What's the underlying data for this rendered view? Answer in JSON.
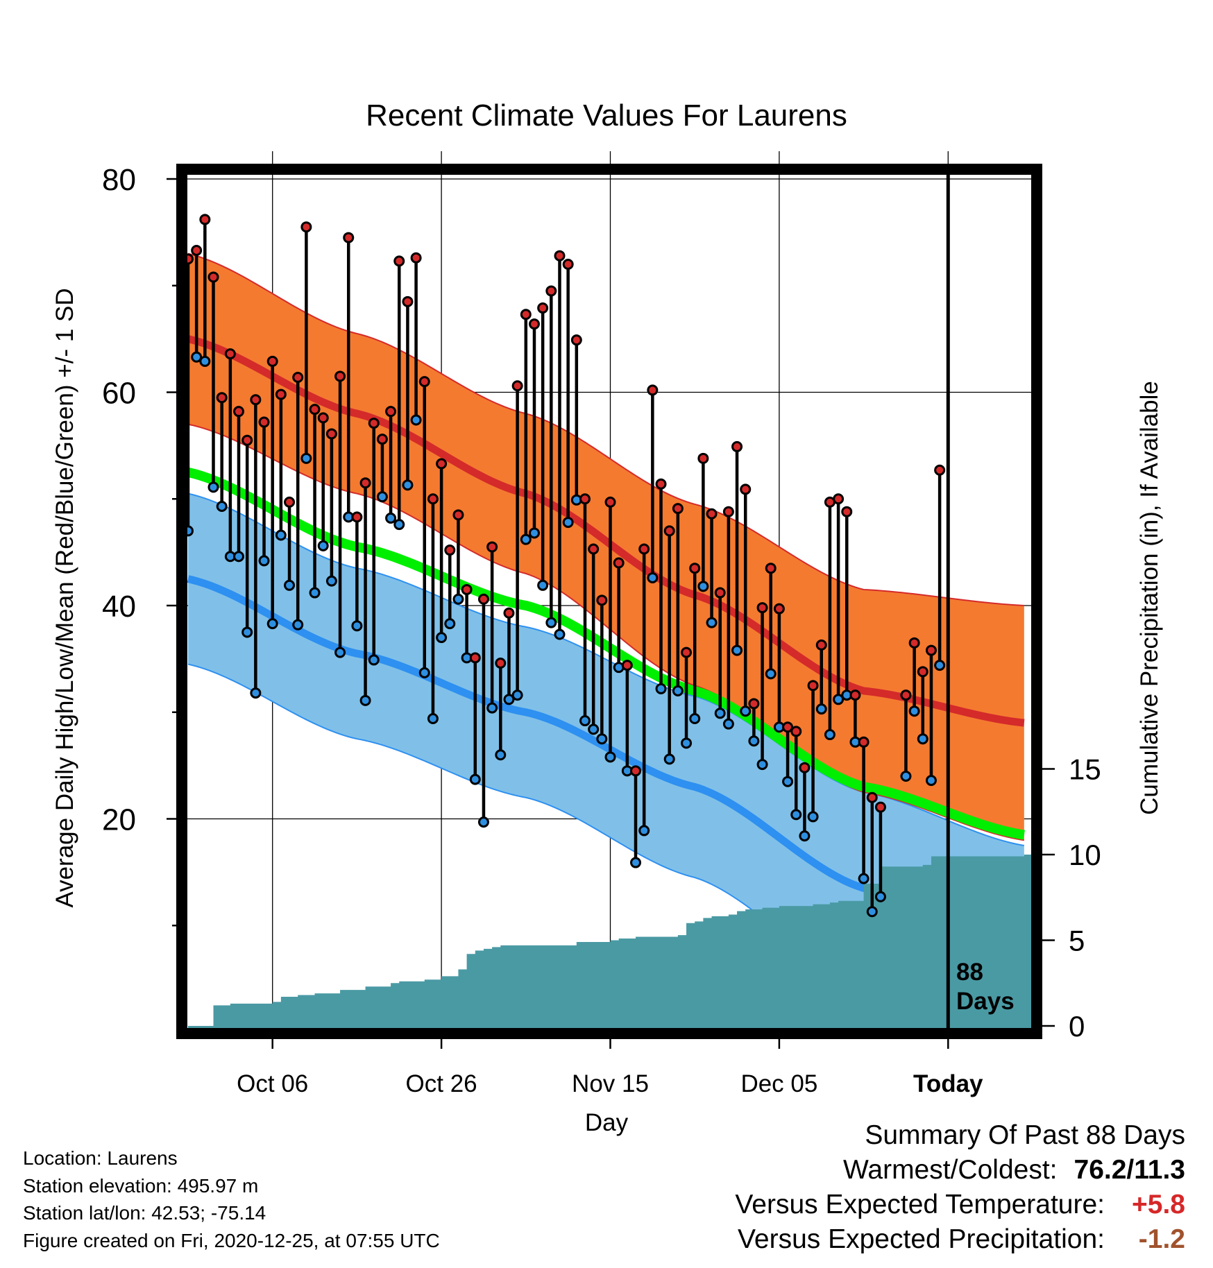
{
  "chart_data": {
    "type": "line",
    "title": "Recent Climate Values For Laurens",
    "xlabel": "Day",
    "ylabel_left": "Average Daily High/Low/Mean (Red/Blue/Green) +/- 1 SD",
    "ylabel_right": "Cumulative Precipitation (in), If Available",
    "x_start": "2020-09-26",
    "days_shown": 100,
    "ylim_left": [
      0,
      80
    ],
    "yticks_left": [
      "20",
      "40",
      "60",
      "80"
    ],
    "ylim_right": [
      0,
      20
    ],
    "yticks_right": [
      "0",
      "5",
      "10",
      "15"
    ],
    "xticks": [
      {
        "date": "2020-10-06",
        "label": "Oct 06"
      },
      {
        "date": "2020-10-26",
        "label": "Oct 26"
      },
      {
        "date": "2020-11-15",
        "label": "Nov 15"
      },
      {
        "date": "2020-12-05",
        "label": "Dec 05"
      },
      {
        "date": "2020-12-25",
        "label": "Today"
      }
    ],
    "today_marker": {
      "date": "2020-12-25",
      "label_line1": "88",
      "label_line2": "Days"
    },
    "grid": true,
    "colors": {
      "high_band": "#f47a30",
      "high_band_edge": "#d42a2a",
      "high_mean": "#d42a2a",
      "low_band": "#80c0e8",
      "low_band_edge": "#2e90f0",
      "low_mean": "#2e90f0",
      "mean_line": "#00ee00",
      "overlap": "#9a1010",
      "precip": "#4a9aa4",
      "high_point": "#d42a2a",
      "low_point": "#2e8fe0"
    },
    "normals": {
      "x": [
        "2020-09-26",
        "2020-10-16",
        "2020-11-05",
        "2020-11-25",
        "2020-12-15",
        "2021-01-03"
      ],
      "high_mean": [
        65,
        58,
        50.5,
        41,
        32,
        29
      ],
      "high_sd": [
        8,
        7.5,
        7.5,
        8.5,
        9.5,
        11
      ],
      "low_mean": [
        42.5,
        35.5,
        30,
        23,
        13.5,
        8
      ],
      "low_sd": [
        8,
        8,
        8,
        8.5,
        9,
        9.5
      ],
      "mean": [
        52.5,
        45.5,
        40,
        32,
        23,
        18.5
      ]
    },
    "daily": [
      {
        "date": "2020-09-26",
        "high": 72.5,
        "low": 47.0
      },
      {
        "date": "2020-09-27",
        "high": 73.3,
        "low": 63.3
      },
      {
        "date": "2020-09-28",
        "high": 76.2,
        "low": 62.9
      },
      {
        "date": "2020-09-29",
        "high": 70.8,
        "low": 51.1
      },
      {
        "date": "2020-09-30",
        "high": 59.5,
        "low": 49.3
      },
      {
        "date": "2020-10-01",
        "high": 63.6,
        "low": 44.6
      },
      {
        "date": "2020-10-02",
        "high": 58.2,
        "low": 44.6
      },
      {
        "date": "2020-10-03",
        "high": 55.5,
        "low": 37.5
      },
      {
        "date": "2020-10-04",
        "high": 59.3,
        "low": 31.8
      },
      {
        "date": "2020-10-05",
        "high": 57.2,
        "low": 44.2
      },
      {
        "date": "2020-10-06",
        "high": 62.9,
        "low": 38.3
      },
      {
        "date": "2020-10-07",
        "high": 59.8,
        "low": 46.6
      },
      {
        "date": "2020-10-08",
        "high": 49.7,
        "low": 41.9
      },
      {
        "date": "2020-10-09",
        "high": 61.4,
        "low": 38.2
      },
      {
        "date": "2020-10-10",
        "high": 75.5,
        "low": 53.8
      },
      {
        "date": "2020-10-11",
        "high": 58.4,
        "low": 41.2
      },
      {
        "date": "2020-10-12",
        "high": 57.6,
        "low": 45.6
      },
      {
        "date": "2020-10-13",
        "high": 56.1,
        "low": 42.3
      },
      {
        "date": "2020-10-14",
        "high": 61.5,
        "low": 35.6
      },
      {
        "date": "2020-10-15",
        "high": 74.5,
        "low": 48.3
      },
      {
        "date": "2020-10-16",
        "high": 48.3,
        "low": 38.1
      },
      {
        "date": "2020-10-17",
        "high": 51.5,
        "low": 31.1
      },
      {
        "date": "2020-10-18",
        "high": 57.1,
        "low": 34.9
      },
      {
        "date": "2020-10-19",
        "high": 55.6,
        "low": 50.2
      },
      {
        "date": "2020-10-20",
        "high": 58.2,
        "low": 48.2
      },
      {
        "date": "2020-10-21",
        "high": 72.3,
        "low": 47.6
      },
      {
        "date": "2020-10-22",
        "high": 68.5,
        "low": 51.3
      },
      {
        "date": "2020-10-23",
        "high": 72.6,
        "low": 57.4
      },
      {
        "date": "2020-10-24",
        "high": 61.0,
        "low": 33.7
      },
      {
        "date": "2020-10-25",
        "high": 50.0,
        "low": 29.4
      },
      {
        "date": "2020-10-26",
        "high": 53.3,
        "low": 37.0
      },
      {
        "date": "2020-10-27",
        "high": 45.2,
        "low": 38.3
      },
      {
        "date": "2020-10-28",
        "high": 48.5,
        "low": 40.6
      },
      {
        "date": "2020-10-29",
        "high": 41.5,
        "low": 35.1
      },
      {
        "date": "2020-10-30",
        "high": 35.1,
        "low": 23.7
      },
      {
        "date": "2020-10-31",
        "high": 40.6,
        "low": 19.7
      },
      {
        "date": "2020-11-01",
        "high": 45.5,
        "low": 30.4
      },
      {
        "date": "2020-11-02",
        "high": 34.6,
        "low": 26.0
      },
      {
        "date": "2020-11-03",
        "high": 39.3,
        "low": 31.2
      },
      {
        "date": "2020-11-04",
        "high": 60.6,
        "low": 31.6
      },
      {
        "date": "2020-11-05",
        "high": 67.3,
        "low": 46.2
      },
      {
        "date": "2020-11-06",
        "high": 66.4,
        "low": 46.8
      },
      {
        "date": "2020-11-07",
        "high": 67.9,
        "low": 41.9
      },
      {
        "date": "2020-11-08",
        "high": 69.5,
        "low": 38.4
      },
      {
        "date": "2020-11-09",
        "high": 72.8,
        "low": 37.3
      },
      {
        "date": "2020-11-10",
        "high": 72.0,
        "low": 47.8
      },
      {
        "date": "2020-11-11",
        "high": 64.9,
        "low": 49.9
      },
      {
        "date": "2020-11-12",
        "high": 50.0,
        "low": 29.2
      },
      {
        "date": "2020-11-13",
        "high": 45.3,
        "low": 28.4
      },
      {
        "date": "2020-11-14",
        "high": 40.5,
        "low": 27.5
      },
      {
        "date": "2020-11-15",
        "high": 49.7,
        "low": 25.8
      },
      {
        "date": "2020-11-16",
        "high": 44.0,
        "low": 34.2
      },
      {
        "date": "2020-11-17",
        "high": 34.4,
        "low": 24.5
      },
      {
        "date": "2020-11-18",
        "high": 24.5,
        "low": 15.9
      },
      {
        "date": "2020-11-19",
        "high": 45.3,
        "low": 18.9
      },
      {
        "date": "2020-11-20",
        "high": 60.2,
        "low": 42.6
      },
      {
        "date": "2020-11-21",
        "high": 51.4,
        "low": 32.2
      },
      {
        "date": "2020-11-22",
        "high": 47.0,
        "low": 25.6
      },
      {
        "date": "2020-11-23",
        "high": 49.1,
        "low": 32.0
      },
      {
        "date": "2020-11-24",
        "high": 35.6,
        "low": 27.1
      },
      {
        "date": "2020-11-25",
        "high": 43.5,
        "low": 29.4
      },
      {
        "date": "2020-11-26",
        "high": 53.8,
        "low": 41.8
      },
      {
        "date": "2020-11-27",
        "high": 48.6,
        "low": 38.4
      },
      {
        "date": "2020-11-28",
        "high": 41.2,
        "low": 29.9
      },
      {
        "date": "2020-11-29",
        "high": 48.8,
        "low": 28.9
      },
      {
        "date": "2020-11-30",
        "high": 54.9,
        "low": 35.8
      },
      {
        "date": "2020-12-01",
        "high": 50.9,
        "low": 30.1
      },
      {
        "date": "2020-12-02",
        "high": 30.8,
        "low": 27.3
      },
      {
        "date": "2020-12-03",
        "high": 39.8,
        "low": 25.1
      },
      {
        "date": "2020-12-04",
        "high": 43.5,
        "low": 33.6
      },
      {
        "date": "2020-12-05",
        "high": 39.7,
        "low": 28.6
      },
      {
        "date": "2020-12-06",
        "high": 28.6,
        "low": 23.5
      },
      {
        "date": "2020-12-07",
        "high": 28.2,
        "low": 20.4
      },
      {
        "date": "2020-12-08",
        "high": 24.8,
        "low": 18.4
      },
      {
        "date": "2020-12-09",
        "high": 32.5,
        "low": 20.2
      },
      {
        "date": "2020-12-10",
        "high": 36.3,
        "low": 30.3
      },
      {
        "date": "2020-12-11",
        "high": 49.7,
        "low": 27.9
      },
      {
        "date": "2020-12-12",
        "high": 50.0,
        "low": 31.2
      },
      {
        "date": "2020-12-13",
        "high": 48.8,
        "low": 31.6
      },
      {
        "date": "2020-12-14",
        "high": 31.6,
        "low": 27.2
      },
      {
        "date": "2020-12-15",
        "high": 27.2,
        "low": 14.4
      },
      {
        "date": "2020-12-16",
        "high": 22.0,
        "low": 11.3
      },
      {
        "date": "2020-12-17",
        "high": 21.1,
        "low": 12.7
      },
      {
        "date": "2020-12-20",
        "high": 31.6,
        "low": 24.0
      },
      {
        "date": "2020-12-21",
        "high": 36.5,
        "low": 30.1
      },
      {
        "date": "2020-12-22",
        "high": 33.8,
        "low": 27.5
      },
      {
        "date": "2020-12-23",
        "high": 35.8,
        "low": 23.6
      },
      {
        "date": "2020-12-24",
        "high": 52.7,
        "low": 34.4
      }
    ],
    "precip_cumulative": {
      "x": [
        "2020-09-26",
        "2020-09-28",
        "2020-09-29",
        "2020-10-01",
        "2020-10-06",
        "2020-10-07",
        "2020-10-09",
        "2020-10-11",
        "2020-10-14",
        "2020-10-17",
        "2020-10-20",
        "2020-10-21",
        "2020-10-24",
        "2020-10-26",
        "2020-10-28",
        "2020-10-29",
        "2020-10-30",
        "2020-10-31",
        "2020-11-01",
        "2020-11-02",
        "2020-11-03",
        "2020-11-10",
        "2020-11-11",
        "2020-11-15",
        "2020-11-16",
        "2020-11-18",
        "2020-11-23",
        "2020-11-24",
        "2020-11-25",
        "2020-11-26",
        "2020-11-27",
        "2020-11-29",
        "2020-11-30",
        "2020-12-01",
        "2020-12-03",
        "2020-12-05",
        "2020-12-09",
        "2020-12-11",
        "2020-12-12",
        "2020-12-15",
        "2020-12-17",
        "2020-12-22",
        "2020-12-23",
        "2021-01-03"
      ],
      "y": [
        0,
        0,
        1.2,
        1.3,
        1.4,
        1.7,
        1.8,
        1.9,
        2.1,
        2.3,
        2.5,
        2.6,
        2.7,
        2.9,
        3.3,
        4.2,
        4.4,
        4.5,
        4.6,
        4.7,
        4.7,
        4.7,
        4.9,
        5.0,
        5.1,
        5.2,
        5.3,
        6.0,
        6.1,
        6.3,
        6.4,
        6.5,
        6.7,
        6.8,
        6.9,
        7.0,
        7.1,
        7.2,
        7.3,
        8.3,
        9.3,
        9.4,
        9.9,
        10.0
      ]
    }
  },
  "footer": {
    "location": "Location: Laurens",
    "elevation": "Station elevation: 495.97 m",
    "latlon": "Station lat/lon: 42.53; -75.14",
    "created": "Figure created on Fri, 2020-12-25, at 07:55 UTC"
  },
  "summary": {
    "heading": "Summary Of Past 88 Days",
    "warm_cold_label": "Warmest/Coldest:",
    "warm_cold_value": "76.2/11.3",
    "temp_label": "Versus Expected Temperature:",
    "temp_value": "+5.8",
    "precip_label": "Versus Expected Precipitation:",
    "precip_value": "-1.2"
  }
}
